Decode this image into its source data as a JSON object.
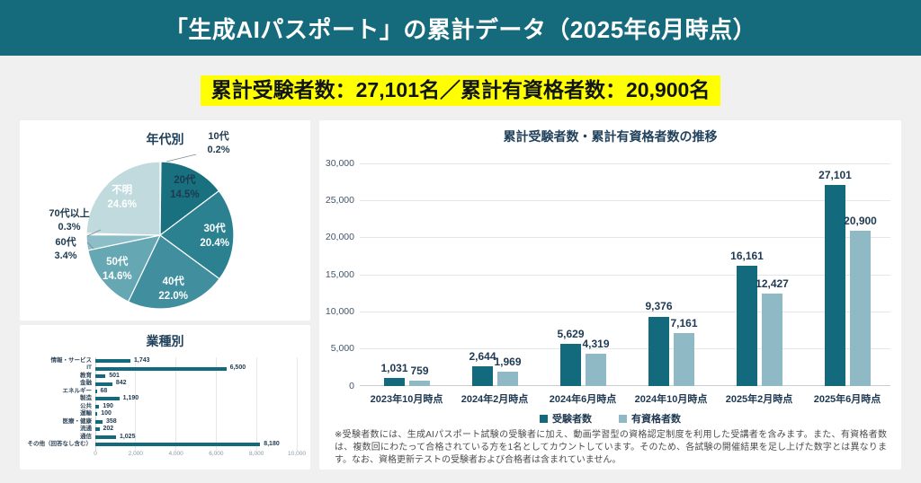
{
  "header": {
    "title": "「生成AIパスポート」の累計データ（2025年6月時点）",
    "bg": "#156b7c"
  },
  "highlight": {
    "text": "累計受験者数：27,101名／累計有資格者数：20,900名",
    "bg": "#ffff00"
  },
  "colors": {
    "teal_dark": "#136a7c",
    "teal_light": "#8fbac5",
    "navy_text": "#1f3a52",
    "page_bg": "#f0f0f1",
    "grid": "#e4e6e8",
    "axis": "#c9ced2",
    "footnote_text": "#4c4c4c"
  },
  "chart_data": [
    {
      "type": "pie",
      "title": "年代別",
      "slices": [
        {
          "label": "10代",
          "value": 0.2,
          "color": "#11596b",
          "label_style": "outside"
        },
        {
          "label": "20代",
          "value": 14.5,
          "color": "#19707f",
          "label_style": "inside_dark"
        },
        {
          "label": "30代",
          "value": 20.4,
          "color": "#2c8190",
          "label_style": "inside_light"
        },
        {
          "label": "40代",
          "value": 22.0,
          "color": "#418f9e",
          "label_style": "inside_light"
        },
        {
          "label": "50代",
          "value": 14.6,
          "color": "#65a7b2",
          "label_style": "inside_light"
        },
        {
          "label": "60代",
          "value": 3.4,
          "color": "#8cbec8",
          "label_style": "outside"
        },
        {
          "label": "70代以上",
          "value": 0.3,
          "color": "#a5cdd4",
          "label_style": "outside"
        },
        {
          "label": "不明",
          "value": 24.6,
          "color": "#c0dade",
          "label_style": "inside_light"
        }
      ]
    },
    {
      "type": "bar",
      "orientation": "horizontal",
      "title": "業種別",
      "categories": [
        "情報・サービス",
        "IT",
        "教育",
        "金融",
        "エネルギー",
        "製造",
        "公共",
        "運輸",
        "医療・健康",
        "流通",
        "通信",
        "その他（回答なし含む）"
      ],
      "values": [
        1743,
        6500,
        501,
        842,
        68,
        1190,
        190,
        100,
        358,
        202,
        1025,
        8180
      ],
      "bar_color": "#136a7c",
      "xlim": [
        0,
        10000
      ],
      "xticks": [
        0,
        2000,
        4000,
        6000,
        8000,
        10000
      ],
      "grid": true
    },
    {
      "type": "bar",
      "title": "累計受験者数・累計有資格者数の推移",
      "categories": [
        "2023年10月時点",
        "2024年2月時点",
        "2024年6月時点",
        "2024年10月時点",
        "2025年2月時点",
        "2025年6月時点"
      ],
      "series": [
        {
          "name": "受験者数",
          "color": "#136a7c",
          "values": [
            1031,
            2644,
            5629,
            9376,
            16161,
            27101
          ]
        },
        {
          "name": "有資格者数",
          "color": "#8fbac5",
          "values": [
            759,
            1969,
            4319,
            7161,
            12427,
            20900
          ]
        }
      ],
      "ylim": [
        0,
        30000
      ],
      "yticks": [
        0,
        5000,
        10000,
        15000,
        20000,
        25000,
        30000
      ],
      "grid": true,
      "legend_position": "bottom"
    }
  ],
  "footnote": {
    "text": "※受験者数には、生成AIパスポート試験の受験者に加え、動画学習型の資格認定制度を利用した受講者を含みます。また、有資格者数は、複数回にわたって合格されている方を1名としてカウントしています。そのため、各試験の開催結果を足し上げた数字とは異なります。なお、資格更新テストの受験者および合格者は含まれていません。"
  }
}
